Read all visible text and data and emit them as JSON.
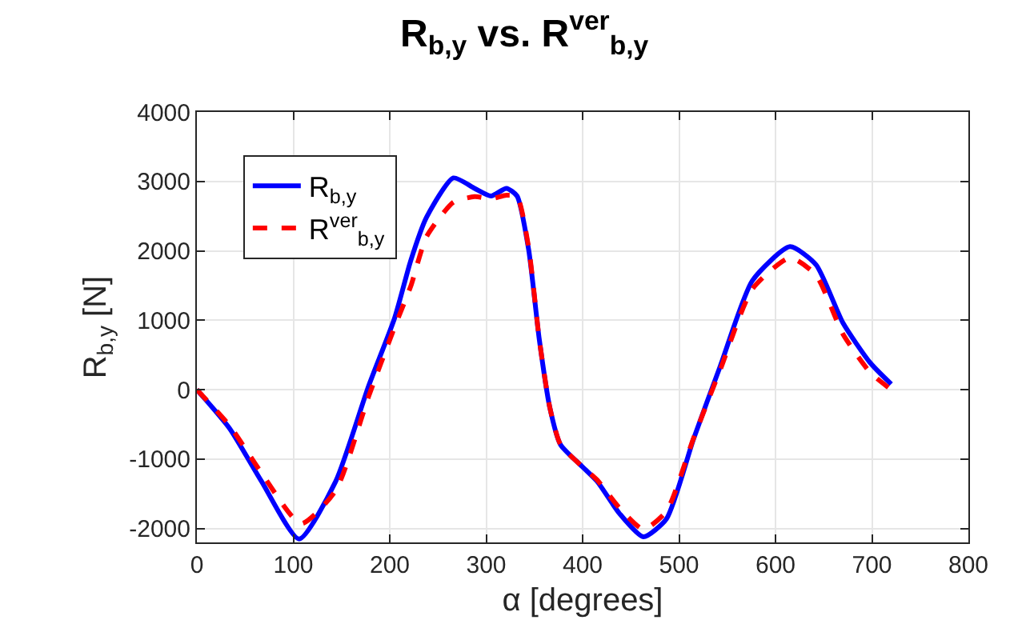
{
  "chart_data": {
    "type": "line",
    "title": "R$_{b,y}$ vs. R$^{ver}$$_{b,y}$",
    "xlabel": "α [degrees]",
    "ylabel": "R$_{b,y}$ [N]",
    "xlim": [
      0,
      800
    ],
    "xticks": [
      0,
      100,
      200,
      300,
      400,
      500,
      600,
      700,
      800
    ],
    "ylim": [
      -2200,
      4000
    ],
    "yticks": [
      -2000,
      -1000,
      0,
      1000,
      2000,
      3000,
      4000
    ],
    "grid": true,
    "legend": "top left",
    "marker": "none",
    "series": [
      {
        "name": "R$_{b,y}$",
        "color": "#0000ff",
        "line_style": "solid",
        "x": [
          0,
          34,
          67,
          106,
          144,
          178,
          205,
          222,
          238,
          266,
          288,
          305,
          321,
          332,
          344,
          355,
          366,
          377,
          399,
          415,
          438,
          463,
          487,
          515,
          543,
          576,
          615,
          642,
          670,
          698,
          720
        ],
        "values": [
          0,
          -560,
          -1320,
          -2150,
          -1320,
          50,
          1030,
          1870,
          2480,
          3050,
          2900,
          2790,
          2900,
          2790,
          2020,
          730,
          -260,
          -790,
          -1100,
          -1320,
          -1780,
          -2120,
          -1860,
          -710,
          350,
          1570,
          2060,
          1800,
          960,
          390,
          80
        ]
      },
      {
        "name": "R$^{ver}$$_{b,y}$",
        "color": "#ff0000",
        "line_style": "dashed",
        "x": [
          0,
          34,
          67,
          108,
          144,
          178,
          205,
          222,
          238,
          266,
          288,
          305,
          321,
          332,
          344,
          355,
          366,
          377,
          399,
          415,
          438,
          463,
          487,
          515,
          543,
          576,
          615,
          642,
          670,
          698,
          720
        ],
        "values": [
          0,
          -520,
          -1200,
          -1930,
          -1450,
          -100,
          900,
          1500,
          2200,
          2700,
          2780,
          2750,
          2800,
          2780,
          2050,
          730,
          -260,
          -790,
          -1100,
          -1300,
          -1700,
          -2010,
          -1750,
          -700,
          300,
          1450,
          1900,
          1650,
          800,
          250,
          0
        ]
      }
    ]
  }
}
